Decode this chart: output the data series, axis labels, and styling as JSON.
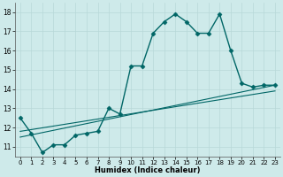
{
  "xlabel": "Humidex (Indice chaleur)",
  "background_color": "#ceeaea",
  "grid_color": "#b8d8d8",
  "line_color": "#006666",
  "x_ticks": [
    0,
    1,
    2,
    3,
    4,
    5,
    6,
    7,
    8,
    9,
    10,
    11,
    12,
    13,
    14,
    15,
    16,
    17,
    18,
    19,
    20,
    21,
    22,
    23
  ],
  "y_ticks": [
    11,
    12,
    13,
    14,
    15,
    16,
    17,
    18
  ],
  "ylim": [
    10.5,
    18.5
  ],
  "xlim": [
    -0.5,
    23.5
  ],
  "main_x": [
    0,
    1,
    2,
    3,
    4,
    5,
    6,
    7,
    8,
    9,
    10,
    11,
    12,
    13,
    14,
    15,
    16,
    17,
    18,
    19,
    20,
    21,
    22,
    23
  ],
  "main_y": [
    12.5,
    11.7,
    10.7,
    11.1,
    11.1,
    11.6,
    11.7,
    11.8,
    13.0,
    12.7,
    15.2,
    15.2,
    16.9,
    17.5,
    17.9,
    17.5,
    16.9,
    16.9,
    17.9,
    16.0,
    14.3,
    14.1,
    14.2,
    14.2
  ],
  "line1_x": [
    0,
    23
  ],
  "line1_y": [
    11.5,
    14.2
  ],
  "line2_x": [
    0,
    23
  ],
  "line2_y": [
    11.8,
    13.9
  ]
}
